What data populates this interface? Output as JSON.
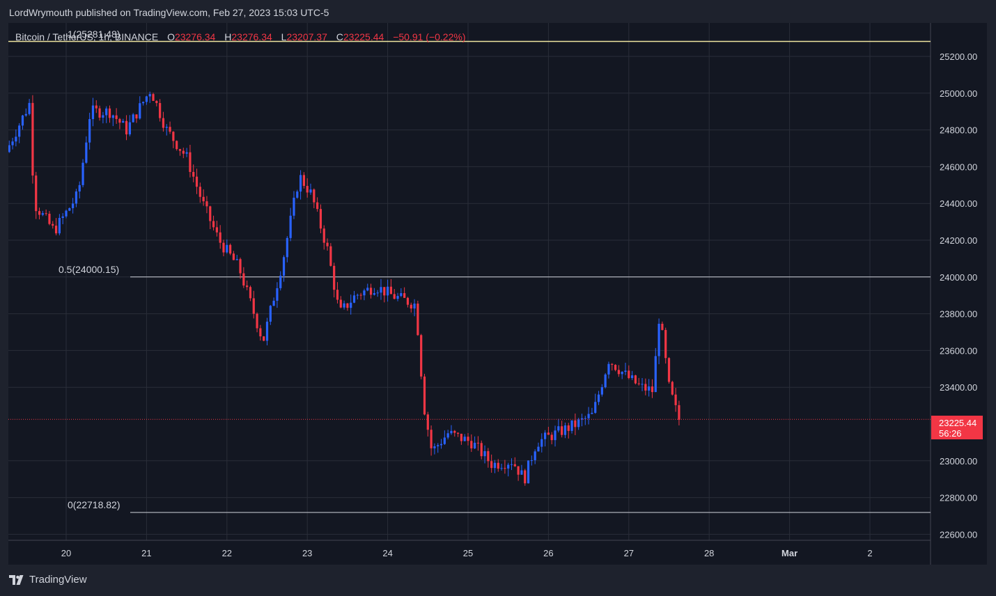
{
  "header": {
    "publisher": "LordWrymouth published on TradingView.com, Feb 27, 2023 15:03 UTC-5"
  },
  "legend": {
    "symbol": "Bitcoin / TetherUS, 1h, BINANCE",
    "o_label": "O",
    "o_value": "23276.34",
    "h_label": "H",
    "h_value": "23276.34",
    "l_label": "L",
    "l_value": "23207.37",
    "c_label": "C",
    "c_value": "23225.44",
    "change": "−50.91 (−0.22%)"
  },
  "price_badge": {
    "price": "23225.44",
    "countdown": "56:26"
  },
  "footer": {
    "logo_text": "TradingView"
  },
  "colors": {
    "background": "#131722",
    "frame": "#1e222d",
    "up": "#2962ff",
    "down": "#f23645",
    "grid": "#2a2e39",
    "fib_top": "#f0e6a0",
    "fib_line": "#d1d4dc"
  },
  "chart_data": {
    "type": "candlestick",
    "ylim": [
      22560,
      25340
    ],
    "y_ticks": [
      "25200.00",
      "25000.00",
      "24800.00",
      "24600.00",
      "24400.00",
      "24200.00",
      "24000.00",
      "23800.00",
      "23600.00",
      "23400.00",
      "23000.00",
      "22800.00",
      "22600.00"
    ],
    "x_ticks": [
      "20",
      "21",
      "22",
      "23",
      "24",
      "25",
      "26",
      "27",
      "28",
      "Mar",
      "2"
    ],
    "last_price": 23225.44,
    "fib_levels": [
      {
        "label": "1(25281.48)",
        "value": 25281.48
      },
      {
        "label": "0.5(24000.15)",
        "value": 24000.15
      },
      {
        "label": "0(22718.82)",
        "value": 22718.82
      }
    ],
    "price_waypoints": [
      {
        "day": 19.25,
        "price": 24680
      },
      {
        "day": 19.55,
        "price": 24950
      },
      {
        "day": 19.6,
        "price": 24400
      },
      {
        "day": 19.85,
        "price": 24250
      },
      {
        "day": 20.15,
        "price": 24450
      },
      {
        "day": 20.3,
        "price": 24900
      },
      {
        "day": 20.55,
        "price": 24900
      },
      {
        "day": 20.75,
        "price": 24800
      },
      {
        "day": 21.05,
        "price": 25020
      },
      {
        "day": 21.25,
        "price": 24800
      },
      {
        "day": 21.5,
        "price": 24650
      },
      {
        "day": 21.7,
        "price": 24400
      },
      {
        "day": 21.9,
        "price": 24200
      },
      {
        "day": 22.15,
        "price": 24050
      },
      {
        "day": 22.45,
        "price": 23650
      },
      {
        "day": 22.7,
        "price": 24100
      },
      {
        "day": 22.9,
        "price": 24550
      },
      {
        "day": 23.05,
        "price": 24450
      },
      {
        "day": 23.25,
        "price": 24150
      },
      {
        "day": 23.4,
        "price": 23800
      },
      {
        "day": 23.6,
        "price": 23900
      },
      {
        "day": 23.85,
        "price": 23950
      },
      {
        "day": 24.05,
        "price": 23900
      },
      {
        "day": 24.35,
        "price": 23850
      },
      {
        "day": 24.45,
        "price": 23300
      },
      {
        "day": 24.55,
        "price": 23050
      },
      {
        "day": 24.75,
        "price": 23150
      },
      {
        "day": 25.05,
        "price": 23100
      },
      {
        "day": 25.3,
        "price": 22980
      },
      {
        "day": 25.55,
        "price": 23000
      },
      {
        "day": 25.7,
        "price": 22900
      },
      {
        "day": 25.85,
        "price": 23100
      },
      {
        "day": 26.1,
        "price": 23150
      },
      {
        "day": 26.35,
        "price": 23200
      },
      {
        "day": 26.55,
        "price": 23250
      },
      {
        "day": 26.75,
        "price": 23550
      },
      {
        "day": 27.0,
        "price": 23450
      },
      {
        "day": 27.15,
        "price": 23400
      },
      {
        "day": 27.3,
        "price": 23380
      },
      {
        "day": 27.38,
        "price": 23800
      },
      {
        "day": 27.5,
        "price": 23400
      },
      {
        "day": 27.62,
        "price": 23225
      }
    ]
  }
}
